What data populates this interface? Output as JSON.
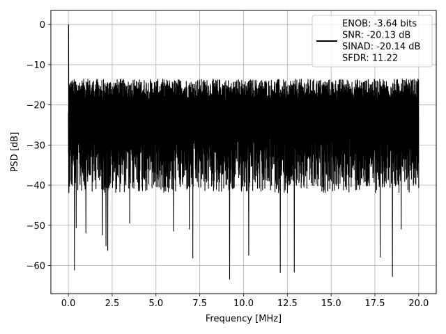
{
  "chart_data": {
    "type": "line",
    "title": "",
    "xlabel": "Frequency [MHz]",
    "ylabel": "PSD [dB]",
    "xlim": [
      -1.0,
      21.0
    ],
    "ylim": [
      -67.0,
      3.5
    ],
    "x_ticks": [
      0.0,
      2.5,
      5.0,
      7.5,
      10.0,
      12.5,
      15.0,
      17.5,
      20.0
    ],
    "x_tick_labels": [
      "0.0",
      "2.5",
      "5.0",
      "7.5",
      "10.0",
      "12.5",
      "15.0",
      "17.5",
      "20.0"
    ],
    "y_ticks": [
      0,
      -10,
      -20,
      -30,
      -40,
      -50,
      -60
    ],
    "y_tick_labels": [
      "0",
      "−10",
      "−20",
      "−30",
      "−40",
      "−50",
      "−60"
    ],
    "grid": true,
    "legend_position": "top-right",
    "legend": [
      "ENOB: -3.64 bits",
      "SNR: -20.13 dB",
      "SINAD: -20.14 dB",
      "SFDR: 11.22"
    ],
    "line_color": "#000000",
    "x_range": [
      0.0,
      20.0
    ],
    "peak": {
      "x": 0.0,
      "y": 0.0
    },
    "noise_band": {
      "upper": -16,
      "lower": -40
    },
    "notable_dips": [
      {
        "x": 0.35,
        "y": -61.2
      },
      {
        "x": 0.45,
        "y": -50.7
      },
      {
        "x": 1.0,
        "y": -52.0
      },
      {
        "x": 1.95,
        "y": -52.5
      },
      {
        "x": 2.15,
        "y": -55.2
      },
      {
        "x": 2.25,
        "y": -56.3
      },
      {
        "x": 3.5,
        "y": -49.5
      },
      {
        "x": 6.0,
        "y": -51.5
      },
      {
        "x": 6.9,
        "y": -51.0
      },
      {
        "x": 7.1,
        "y": -58.2
      },
      {
        "x": 9.2,
        "y": -63.5
      },
      {
        "x": 10.3,
        "y": -57.5
      },
      {
        "x": 12.1,
        "y": -61.8
      },
      {
        "x": 12.9,
        "y": -61.7
      },
      {
        "x": 17.8,
        "y": -58.0
      },
      {
        "x": 18.5,
        "y": -62.8
      },
      {
        "x": 19.0,
        "y": -51.0
      }
    ]
  }
}
